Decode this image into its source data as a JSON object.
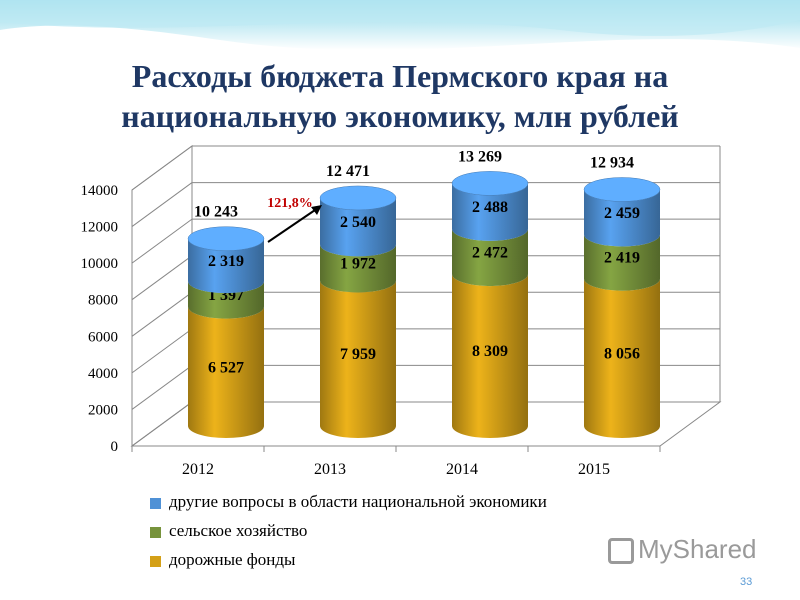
{
  "slide": {
    "title_line1": "Расходы бюджета Пермского края на",
    "title_line2": "национальную экономику, млн рублей",
    "page_number": "33",
    "watermark": "MyShared"
  },
  "colors": {
    "road": "#d4a017",
    "agri": "#77933c",
    "other": "#4f91d6",
    "title": "#1f3864",
    "growth": "#c00000"
  },
  "chart_data": {
    "type": "bar",
    "stacked": true,
    "three_d": true,
    "categories": [
      "2012",
      "2013",
      "2014",
      "2015"
    ],
    "series": [
      {
        "name": "дорожные фонды",
        "values": [
          6527,
          7959,
          8309,
          8056
        ],
        "labels": [
          "6 527",
          "7 959",
          "8 309",
          "8 056"
        ],
        "color": "#d4a017"
      },
      {
        "name": "сельское хозяйство",
        "values": [
          1397,
          1972,
          2472,
          2419
        ],
        "labels": [
          "1 397",
          "1 972",
          "2 472",
          "2 419"
        ],
        "color": "#77933c"
      },
      {
        "name": "другие вопросы в области национальной экономики",
        "values": [
          2319,
          2540,
          2488,
          2459
        ],
        "labels": [
          "2 319",
          "2 540",
          "2 488",
          "2 459"
        ],
        "color": "#4f91d6"
      }
    ],
    "totals": [
      "10 243",
      "12 471",
      "13 269",
      "12 934"
    ],
    "annotation": "121,8%",
    "ylim": [
      0,
      14000
    ],
    "yticks": [
      "0",
      "2000",
      "4000",
      "6000",
      "8000",
      "10000",
      "12000",
      "14000"
    ],
    "grid": true,
    "legend_position": "bottom"
  }
}
